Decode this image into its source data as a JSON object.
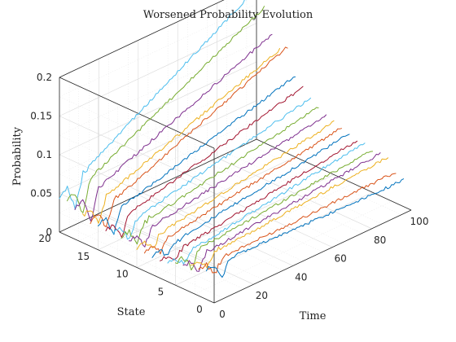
{
  "chart_data": {
    "type": "line",
    "projection": "3d",
    "title": "Worsened Probability Evolution",
    "xlabel": "Time",
    "ylabel": "State",
    "zlabel": "Probability",
    "xlim": [
      0,
      100
    ],
    "ylim": [
      0,
      20
    ],
    "zlim": [
      0,
      0.2
    ],
    "xticks": [
      "0",
      "20",
      "40",
      "60",
      "80",
      "100"
    ],
    "yticks": [
      "0",
      "5",
      "10",
      "15",
      "20"
    ],
    "zticks": [
      "0",
      "0.05",
      "0.1",
      "0.15",
      "0.2"
    ],
    "grid": true,
    "colors": [
      "#0072BD",
      "#D95319",
      "#EDB120",
      "#7E2F8E",
      "#77AC30",
      "#4DBEEE",
      "#A2142F"
    ],
    "series": [
      {
        "state": 1,
        "start": 0.04,
        "end": 0.034,
        "dip": 0.018
      },
      {
        "state": 2,
        "start": 0.035,
        "end": 0.04,
        "dip": 0.016
      },
      {
        "state": 3,
        "start": 0.035,
        "end": 0.055,
        "dip": 0.02
      },
      {
        "state": 4,
        "start": 0.03,
        "end": 0.055,
        "dip": 0.01
      },
      {
        "state": 5,
        "start": 0.03,
        "end": 0.055,
        "dip": 0.01
      },
      {
        "state": 6,
        "start": 0.022,
        "end": 0.06,
        "dip": 0.012
      },
      {
        "state": 7,
        "start": 0.022,
        "end": 0.058,
        "dip": 0.012
      },
      {
        "state": 8,
        "start": 0.025,
        "end": 0.062,
        "dip": 0.012
      },
      {
        "state": 9,
        "start": 0.025,
        "end": 0.065,
        "dip": 0.012
      },
      {
        "state": 10,
        "start": 0.025,
        "end": 0.068,
        "dip": 0.012
      },
      {
        "state": 11,
        "start": 0.03,
        "end": 0.072,
        "dip": 0.01
      },
      {
        "state": 12,
        "start": 0.03,
        "end": 0.078,
        "dip": 0.008
      },
      {
        "state": 13,
        "start": 0.03,
        "end": 0.085,
        "dip": 0.008
      },
      {
        "state": 14,
        "start": 0.03,
        "end": 0.095,
        "dip": 0.006
      },
      {
        "state": 15,
        "start": 0.032,
        "end": 0.105,
        "dip": 0.006
      },
      {
        "state": 16,
        "start": 0.032,
        "end": 0.138,
        "dip": 0.006
      },
      {
        "state": 17,
        "start": 0.035,
        "end": 0.13,
        "dip": 0.006
      },
      {
        "state": 18,
        "start": 0.04,
        "end": 0.145,
        "dip": 0.006
      },
      {
        "state": 19,
        "start": 0.045,
        "end": 0.175,
        "dip": 0.006
      },
      {
        "state": 20,
        "start": 0.045,
        "end": 0.195,
        "dip": 0.006
      }
    ]
  }
}
